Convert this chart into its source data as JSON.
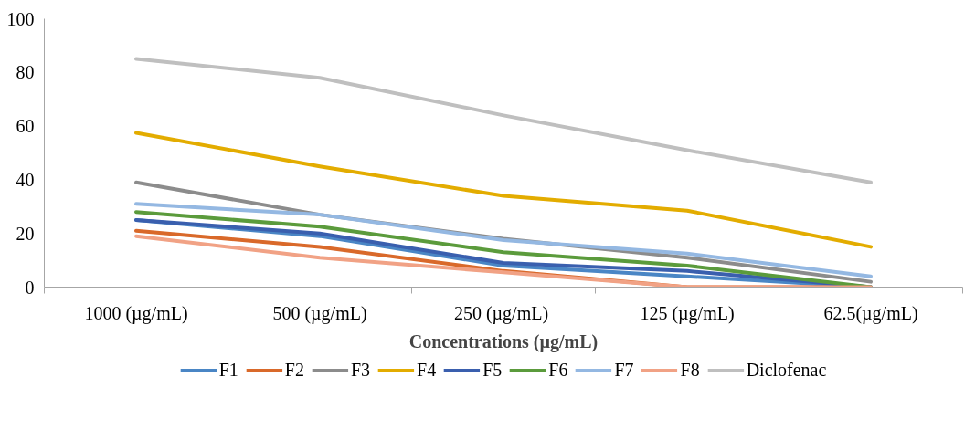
{
  "chart_data": {
    "type": "line",
    "xlabel": "Concentrations (µg/mL)",
    "categories": [
      "1000 (µg/mL)",
      "500 (µg/mL)",
      "250  (µg/mL)",
      "125 (µg/mL)",
      "62.5(µg/mL)"
    ],
    "series": [
      {
        "name": "F1",
        "color": "#4a86c5",
        "values": [
          25,
          19,
          8,
          4,
          0
        ]
      },
      {
        "name": "F2",
        "color": "#d9692a",
        "values": [
          21,
          15,
          6,
          0,
          0
        ]
      },
      {
        "name": "F3",
        "color": "#8c8c8c",
        "values": [
          39,
          27,
          18,
          11,
          2
        ]
      },
      {
        "name": "F4",
        "color": "#e3ac00",
        "values": [
          57.5,
          45,
          34,
          28.5,
          15
        ]
      },
      {
        "name": "F5",
        "color": "#3a5fae",
        "values": [
          25,
          20,
          9,
          6,
          0
        ]
      },
      {
        "name": "F6",
        "color": "#5b9b3c",
        "values": [
          28,
          22.5,
          13,
          8,
          0
        ]
      },
      {
        "name": "F7",
        "color": "#94b8e2",
        "values": [
          31,
          27,
          17.5,
          12.5,
          4
        ]
      },
      {
        "name": "F8",
        "color": "#f1a285",
        "values": [
          19,
          11,
          5.5,
          0,
          0
        ]
      },
      {
        "name": "Diclofenac",
        "color": "#bfbfbf",
        "values": [
          85,
          78,
          64,
          51,
          39
        ]
      }
    ],
    "ylim": [
      0,
      100
    ],
    "yticks": [
      0,
      20,
      40,
      60,
      80,
      100
    ],
    "grid": false,
    "legend": "bottom",
    "marker": "none",
    "line_style": "solid"
  }
}
